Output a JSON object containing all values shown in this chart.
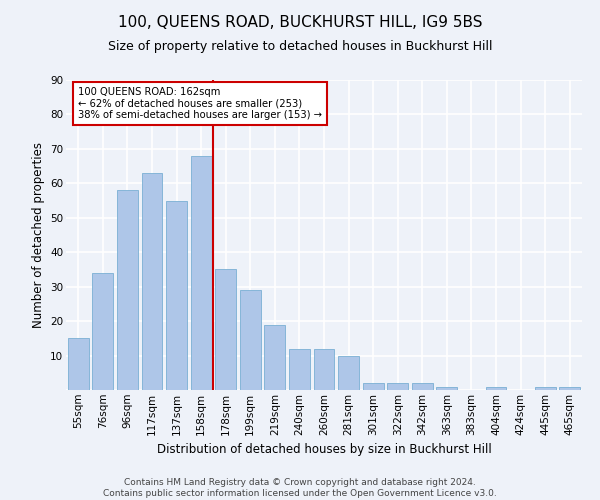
{
  "title": "100, QUEENS ROAD, BUCKHURST HILL, IG9 5BS",
  "subtitle": "Size of property relative to detached houses in Buckhurst Hill",
  "xlabel": "Distribution of detached houses by size in Buckhurst Hill",
  "ylabel": "Number of detached properties",
  "categories": [
    "55sqm",
    "76sqm",
    "96sqm",
    "117sqm",
    "137sqm",
    "158sqm",
    "178sqm",
    "199sqm",
    "219sqm",
    "240sqm",
    "260sqm",
    "281sqm",
    "301sqm",
    "322sqm",
    "342sqm",
    "363sqm",
    "383sqm",
    "404sqm",
    "424sqm",
    "445sqm",
    "465sqm"
  ],
  "values": [
    15,
    34,
    58,
    63,
    55,
    68,
    35,
    29,
    19,
    12,
    12,
    10,
    2,
    2,
    2,
    1,
    0,
    1,
    0,
    1,
    1
  ],
  "bar_color": "#aec6e8",
  "bar_edge_color": "#7aafd4",
  "vline_x_index": 5,
  "vline_color": "#cc0000",
  "annotation_text": "100 QUEENS ROAD: 162sqm\n← 62% of detached houses are smaller (253)\n38% of semi-detached houses are larger (153) →",
  "annotation_box_color": "#ffffff",
  "annotation_box_edge": "#cc0000",
  "ylim": [
    0,
    90
  ],
  "yticks": [
    0,
    10,
    20,
    30,
    40,
    50,
    60,
    70,
    80,
    90
  ],
  "footnote": "Contains HM Land Registry data © Crown copyright and database right 2024.\nContains public sector information licensed under the Open Government Licence v3.0.",
  "bg_color": "#eef2f9",
  "plot_bg_color": "#eef2f9",
  "grid_color": "#ffffff",
  "title_fontsize": 11,
  "subtitle_fontsize": 9,
  "label_fontsize": 8.5,
  "tick_fontsize": 7.5,
  "footnote_fontsize": 6.5
}
